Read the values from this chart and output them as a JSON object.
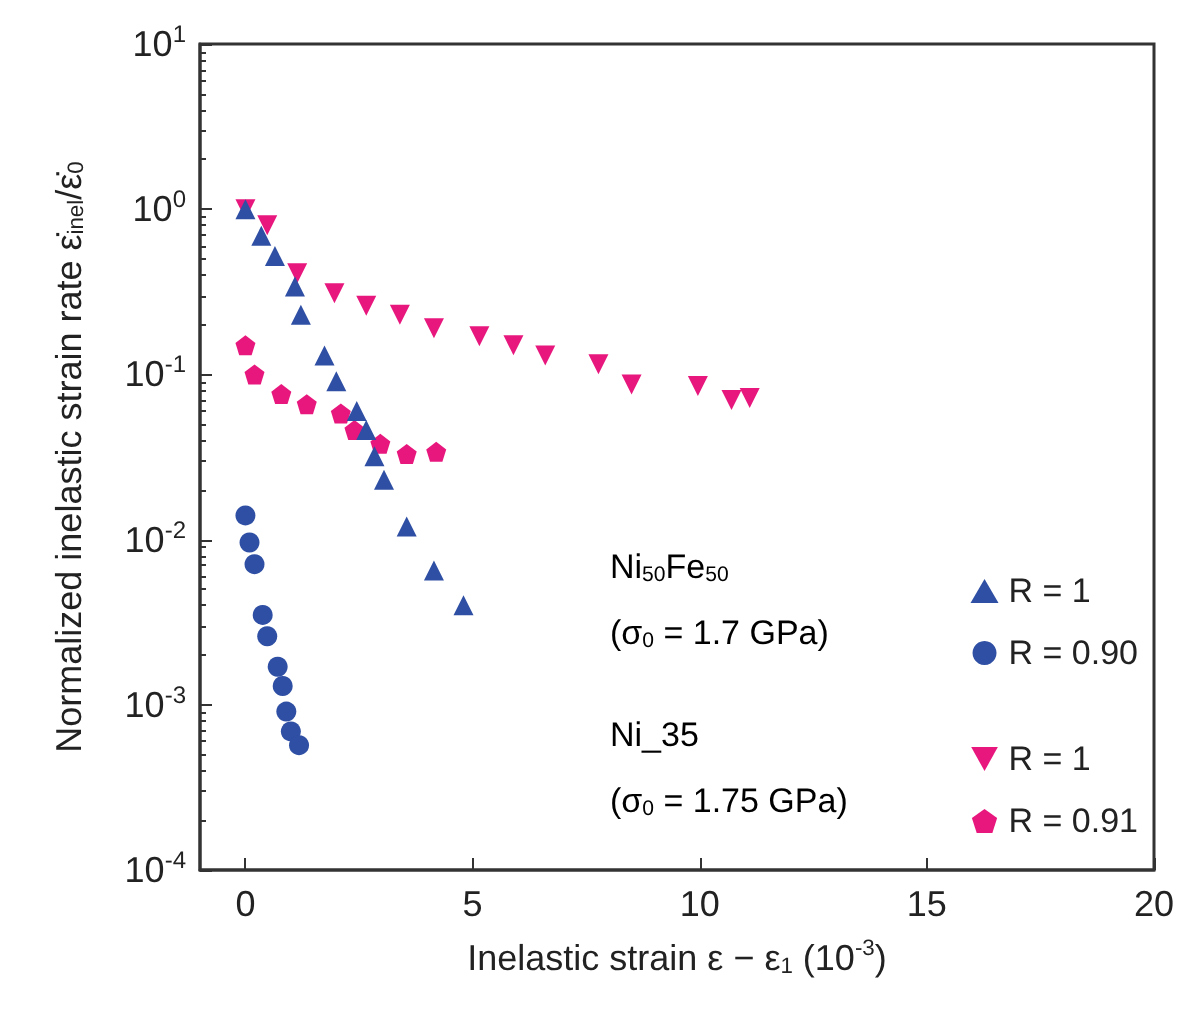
{
  "chart_data": {
    "type": "scatter",
    "xlabel": "Inelastic strain ε − ε$_{1}$ (10$^{-3}$)",
    "ylabel": "Normalized inelastic strain rate ε̇$_{inel}$/ε̇$_{0}$",
    "annotations": [
      "Ni$_{50}$Fe$_{50}$",
      "(σ$_{0}$ = 1.7 GPa)",
      "Ni_35",
      "(σ$_{0}$ = 1.75 GPa)"
    ],
    "log": "y",
    "grid": false,
    "legend": "bottom right",
    "xlim": [
      -1,
      20
    ],
    "xticks": [
      0,
      5,
      10,
      15,
      20
    ],
    "ylim": [
      0.0001,
      10
    ],
    "yticks": [
      {
        "value": 0.0001,
        "label": "10$^{-4}$"
      },
      {
        "value": 0.001,
        "label": "10$^{-3}$"
      },
      {
        "value": 0.01,
        "label": "10$^{-2}$"
      },
      {
        "value": 0.1,
        "label": "10$^{-1}$"
      },
      {
        "value": 1,
        "label": "10$^{0}$"
      },
      {
        "value": 10,
        "label": "10$^{1}$"
      }
    ],
    "series": [
      {
        "name": "R = 1",
        "color": "#2e4fa3",
        "marker": "triangle",
        "x": [
          0,
          0.35,
          0.65,
          1.09,
          1.22,
          1.74,
          2.0,
          2.45,
          2.66,
          2.84,
          3.05,
          3.55,
          4.15,
          4.8
        ],
        "values": [
          1.0,
          0.69,
          0.52,
          0.34,
          0.23,
          0.13,
          0.091,
          0.06,
          0.046,
          0.032,
          0.023,
          0.012,
          0.0065,
          0.004
        ]
      },
      {
        "name": "R = 0.90",
        "color": "#2e4fa3",
        "marker": "circle",
        "x": [
          0,
          0.09,
          0.2,
          0.38,
          0.48,
          0.71,
          0.82,
          0.9,
          1.0,
          1.18
        ],
        "values": [
          0.014,
          0.0096,
          0.0071,
          0.0035,
          0.0026,
          0.0017,
          0.0013,
          0.00091,
          0.00069,
          0.00057
        ]
      },
      {
        "name": "R = 1",
        "color": "#e8177d",
        "marker": "triangle-down",
        "x": [
          0,
          0.48,
          1.14,
          1.96,
          2.66,
          3.4,
          4.15,
          5.15,
          5.9,
          6.6,
          7.77,
          8.5,
          9.96,
          10.7,
          11.1
        ],
        "values": [
          1.0,
          0.8,
          0.41,
          0.31,
          0.26,
          0.23,
          0.19,
          0.17,
          0.15,
          0.13,
          0.115,
          0.087,
          0.085,
          0.07,
          0.072
        ]
      },
      {
        "name": "R = 0.91",
        "color": "#e8177d",
        "x": [
          0,
          0.2,
          0.79,
          1.35,
          2.1,
          2.4,
          2.97,
          3.55,
          4.2
        ],
        "values": [
          0.15,
          0.1,
          0.076,
          0.066,
          0.058,
          0.046,
          0.038,
          0.033,
          0.034
        ]
      }
    ]
  }
}
